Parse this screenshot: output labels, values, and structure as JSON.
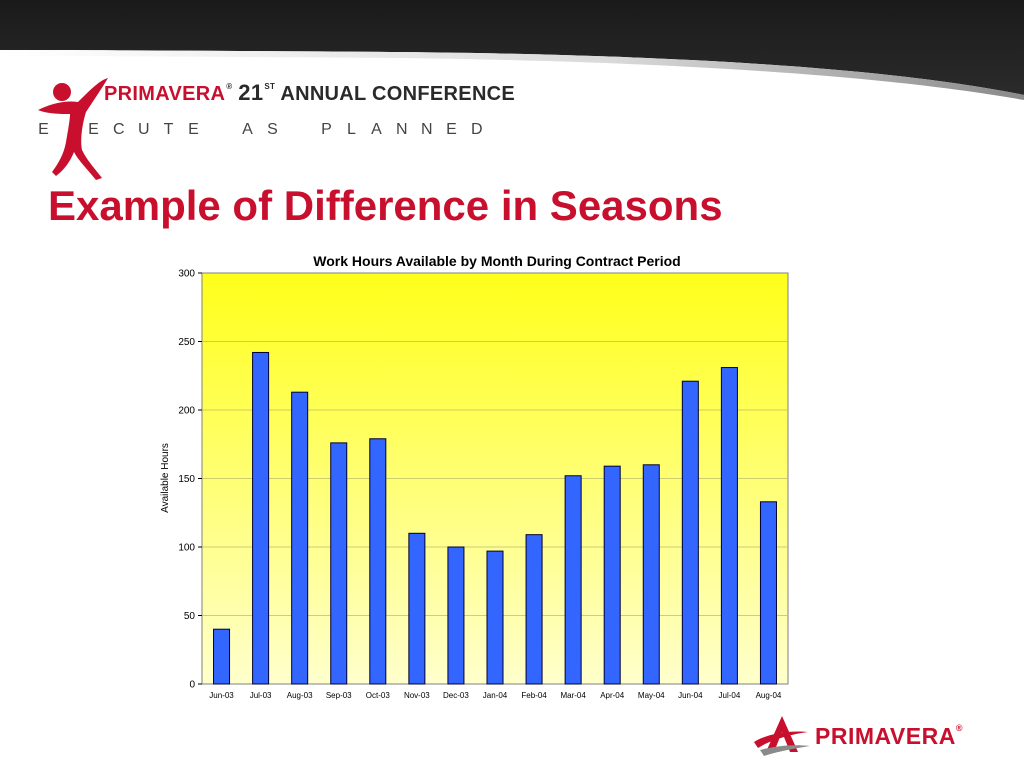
{
  "header": {
    "brand": "PRIMAVERA",
    "registered": "®",
    "edition_number": "21",
    "edition_suffix": "ST",
    "conference_label": "ANNUAL CONFERENCE",
    "tagline_letters": [
      "E",
      "",
      "E",
      "C",
      "U",
      "T",
      "E",
      " ",
      "A",
      "S",
      " ",
      "P",
      "L",
      "A",
      "N",
      "N",
      "E",
      "D"
    ]
  },
  "slide": {
    "title": "Example of Difference in Seasons"
  },
  "footer": {
    "brand": "PRIMAVERA",
    "registered": "®"
  },
  "colors": {
    "accent_red": "#c8102e",
    "bar_fill": "#3366ff",
    "plot_gradient_top": "#ffff1a",
    "plot_gradient_bottom": "#ffffcc"
  },
  "chart_data": {
    "type": "bar",
    "title": "Work Hours Available by Month During Contract Period",
    "xlabel": "",
    "ylabel": "Available Hours",
    "ylim": [
      0,
      300
    ],
    "yticks": [
      0,
      50,
      100,
      150,
      200,
      250,
      300
    ],
    "grid": true,
    "legend": "none",
    "categories": [
      "Jun-03",
      "Jul-03",
      "Aug-03",
      "Sep-03",
      "Oct-03",
      "Nov-03",
      "Dec-03",
      "Jan-04",
      "Feb-04",
      "Mar-04",
      "Apr-04",
      "May-04",
      "Jun-04",
      "Jul-04",
      "Aug-04"
    ],
    "values": [
      40,
      242,
      213,
      176,
      179,
      110,
      100,
      97,
      109,
      152,
      159,
      160,
      221,
      231,
      133
    ]
  }
}
